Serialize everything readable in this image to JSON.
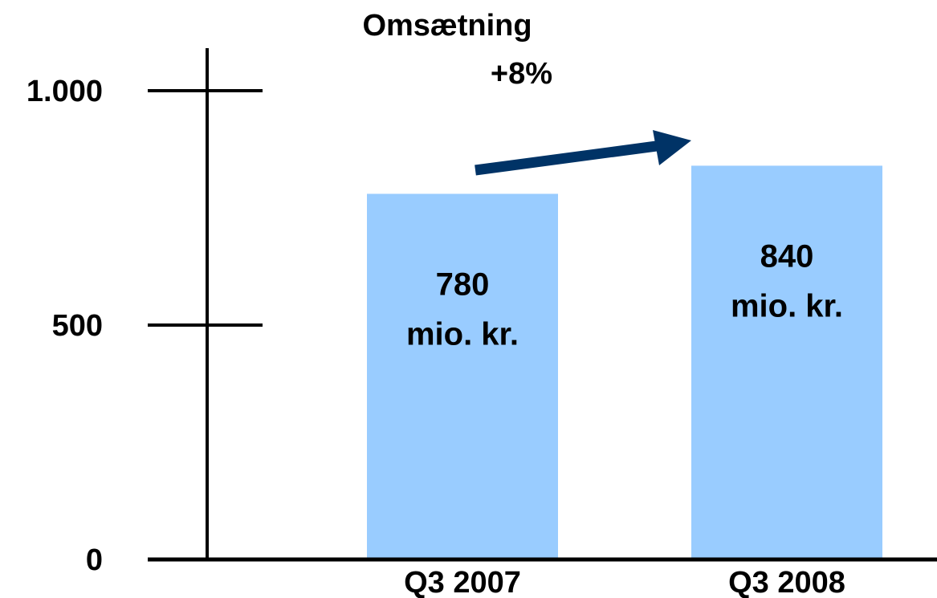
{
  "chart_data": {
    "type": "bar",
    "title": "Omsætning",
    "subtitle": "+8%",
    "categories": [
      "Q3 2007",
      "Q3 2008"
    ],
    "values": [
      780,
      840
    ],
    "value_labels": [
      {
        "value": "780",
        "unit": "mio. kr."
      },
      {
        "value": "840",
        "unit": "mio. kr."
      }
    ],
    "ylim": [
      0,
      1000
    ],
    "yticks": [
      0,
      500,
      1000
    ],
    "ytick_labels": [
      "0",
      "500",
      "1.000"
    ],
    "xlabel": "",
    "ylabel": "",
    "grid": false,
    "legend": "none",
    "colors": {
      "bar": "#99CCFF",
      "arrow": "#003366",
      "axis": "#000000"
    }
  }
}
